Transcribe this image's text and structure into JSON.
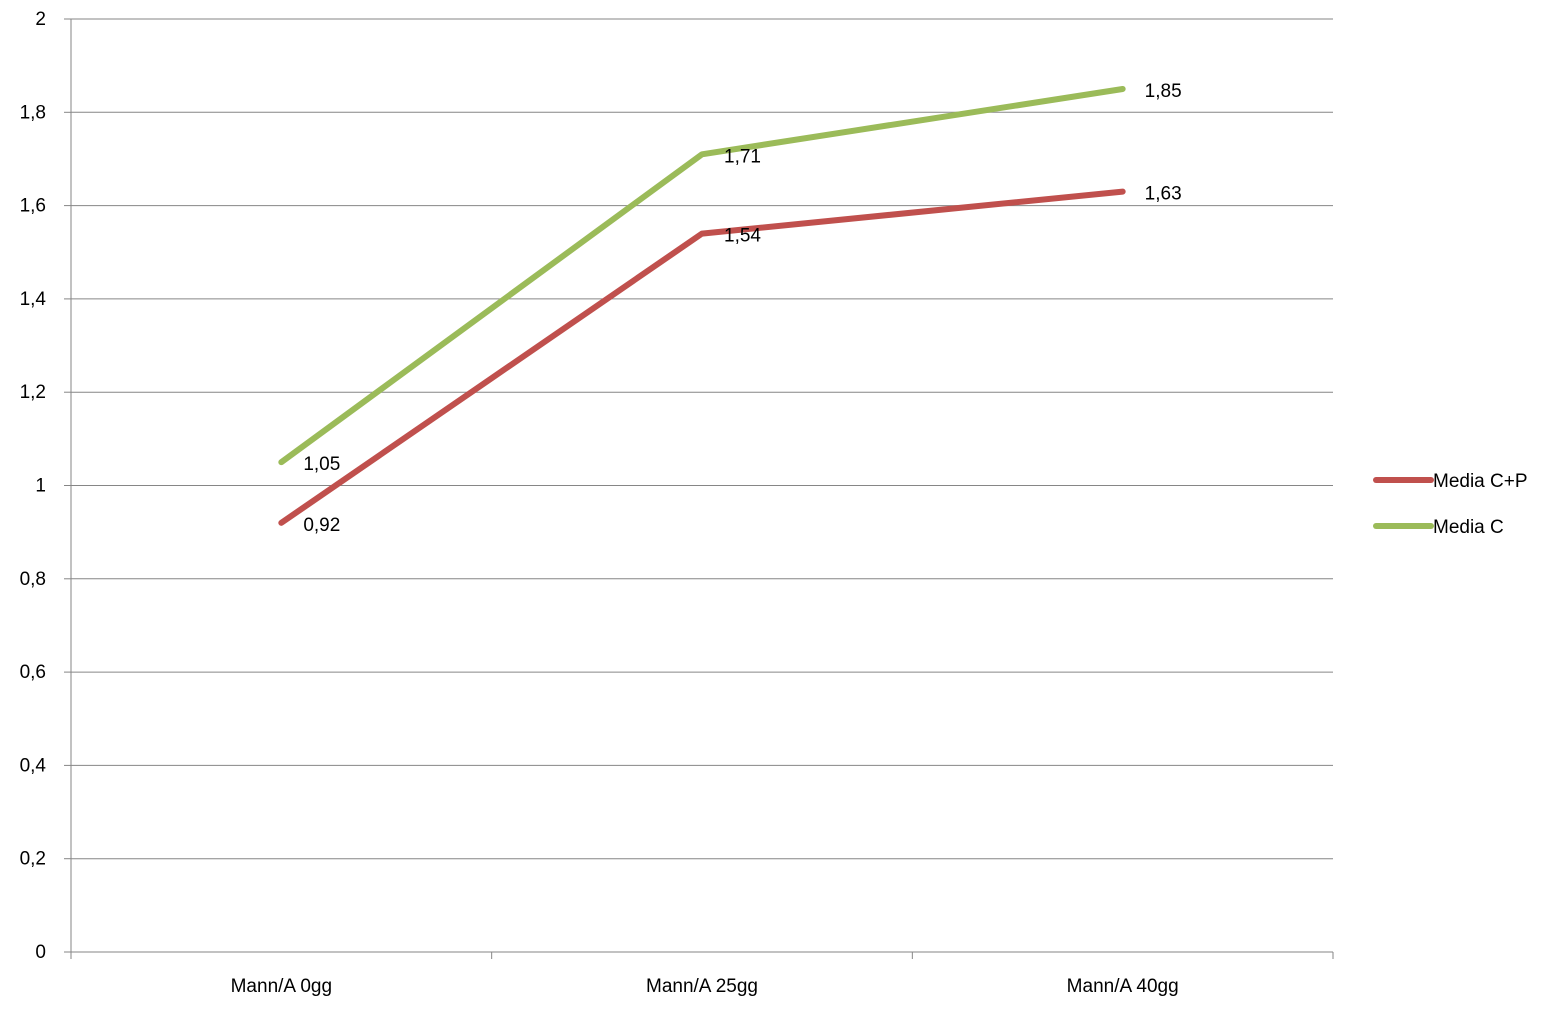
{
  "chart_data": {
    "type": "line",
    "title": "",
    "xlabel": "",
    "ylabel": "",
    "categories": [
      "Mann/A 0gg",
      "Mann/A 25gg",
      "Mann/A 40gg"
    ],
    "ylim": [
      0,
      2
    ],
    "yticks": [
      0,
      0.2,
      0.4,
      0.6,
      0.8,
      1,
      1.2,
      1.4,
      1.6,
      1.8,
      2
    ],
    "ytick_labels": [
      "0",
      "0,2",
      "0,4",
      "0,6",
      "0,8",
      "1",
      "1,2",
      "1,4",
      "1,6",
      "1,8",
      "2"
    ],
    "grid": true,
    "legend_position": "right",
    "series": [
      {
        "name": "Media C+P",
        "color": "#C0504D",
        "values": [
          0.92,
          1.54,
          1.63
        ],
        "labels": [
          "0,92",
          "1,54",
          "1,63"
        ]
      },
      {
        "name": "Media C",
        "color": "#9BBB59",
        "values": [
          1.05,
          1.71,
          1.85
        ],
        "labels": [
          "1,05",
          "1,71",
          "1,85"
        ]
      }
    ]
  }
}
